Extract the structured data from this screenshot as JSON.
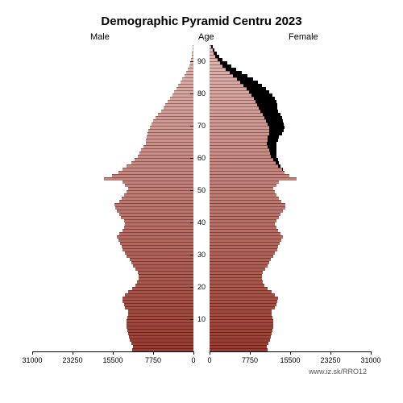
{
  "title": "Demographic Pyramid Centru 2023",
  "title_fontsize": 15,
  "labels": {
    "male": "Male",
    "female": "Female",
    "age": "Age"
  },
  "source_text": "www.iz.sk/RRO12",
  "chart": {
    "type": "population-pyramid",
    "background_color": "#ffffff",
    "text_color": "#000000",
    "axis_color": "#000000",
    "max_value": 31000,
    "x_ticks": [
      0,
      7750,
      15500,
      23250,
      31000
    ],
    "age_ticks": [
      10,
      20,
      30,
      40,
      50,
      60,
      70,
      80,
      90
    ],
    "age_max": 95,
    "gradient_young": "#9b3b2f",
    "gradient_old": "#e4b8b3",
    "shadow_color": "#000000",
    "bar_border_color": "rgba(0,0,0,0.35)",
    "male": [
      11800,
      11600,
      11900,
      12200,
      12400,
      12600,
      12700,
      12800,
      12900,
      12800,
      12700,
      12500,
      12600,
      13100,
      13400,
      13600,
      13700,
      13200,
      12500,
      11800,
      11200,
      10800,
      10600,
      10500,
      10700,
      11200,
      11600,
      11900,
      12300,
      12800,
      13200,
      13600,
      13800,
      14100,
      14400,
      14700,
      14200,
      13600,
      13300,
      13100,
      13400,
      13900,
      14300,
      14700,
      15100,
      15200,
      14300,
      13800,
      13300,
      12800,
      12600,
      13200,
      13600,
      17200,
      15600,
      14400,
      13700,
      12800,
      12000,
      11300,
      10700,
      10400,
      10000,
      9600,
      9200,
      9100,
      9000,
      8900,
      8700,
      8400,
      8100,
      7700,
      7300,
      6800,
      6200,
      5800,
      5400,
      5000,
      4500,
      4100,
      3700,
      3300,
      2900,
      2500,
      2100,
      1700,
      1400,
      1100,
      850,
      650,
      480,
      350,
      250,
      170,
      110
    ],
    "female": [
      11200,
      11000,
      11300,
      11600,
      11800,
      12000,
      12100,
      12200,
      12300,
      12200,
      12100,
      11900,
      12000,
      12500,
      12800,
      13000,
      13100,
      12600,
      11900,
      11200,
      10600,
      10200,
      10100,
      10000,
      10200,
      10700,
      11100,
      11400,
      11800,
      12200,
      12600,
      13000,
      13200,
      13500,
      13800,
      14100,
      13600,
      13100,
      12800,
      12600,
      12900,
      13300,
      13700,
      14100,
      14500,
      14600,
      13800,
      13300,
      12900,
      12500,
      12300,
      12900,
      13300,
      16700,
      15300,
      14400,
      13900,
      13200,
      12700,
      12200,
      11800,
      11600,
      11400,
      11200,
      11000,
      11100,
      11200,
      11400,
      11500,
      11400,
      11200,
      10900,
      10600,
      10200,
      9700,
      9400,
      9200,
      8900,
      8500,
      8100,
      7600,
      7100,
      6500,
      5900,
      5200,
      4500,
      3800,
      3100,
      2500,
      2000,
      1500,
      1100,
      800,
      550,
      350
    ],
    "female_surplus": [
      0,
      0,
      0,
      0,
      0,
      0,
      0,
      0,
      0,
      0,
      0,
      0,
      0,
      0,
      0,
      0,
      0,
      0,
      0,
      0,
      0,
      0,
      0,
      0,
      0,
      0,
      0,
      0,
      0,
      0,
      0,
      0,
      0,
      0,
      0,
      0,
      0,
      0,
      0,
      0,
      0,
      0,
      0,
      0,
      0,
      0,
      0,
      0,
      0,
      0,
      0,
      0,
      0,
      0,
      0,
      0,
      200,
      400,
      700,
      900,
      1100,
      1200,
      1400,
      1600,
      1800,
      2000,
      2200,
      2500,
      2800,
      3000,
      3100,
      3200,
      3300,
      3400,
      3500,
      3600,
      3800,
      3900,
      4000,
      4000,
      3900,
      3800,
      3600,
      3400,
      3100,
      2800,
      2400,
      2000,
      1650,
      1350,
      1020,
      750,
      550,
      380,
      240
    ]
  }
}
